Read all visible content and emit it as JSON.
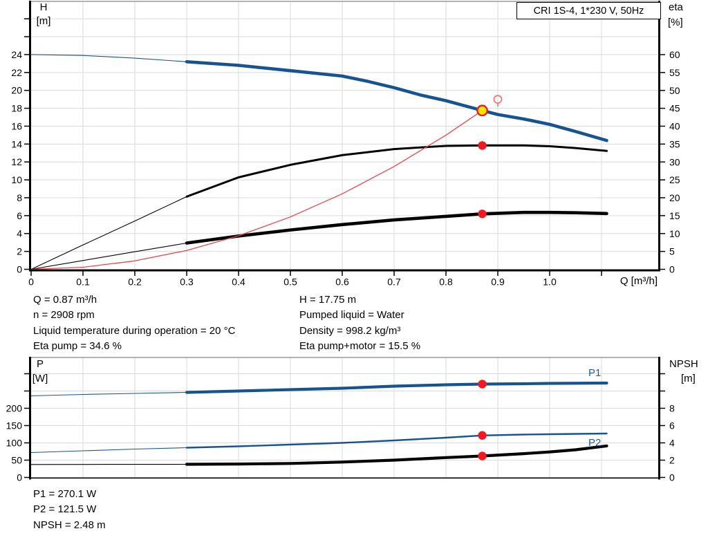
{
  "title_box": {
    "label": "CRI 1S-4, 1*230 V, 50Hz"
  },
  "colors": {
    "curve_blue": "#17548f",
    "label_blue": "#1d5ca3",
    "black": "#000000",
    "red": "#ec1c24",
    "yellow": "#ffe000",
    "light_red": "#f26b6b",
    "system_curve_red": "#ee4444",
    "grid": "#d9d9d9",
    "frame": "#9a9a9a"
  },
  "readout": {
    "left": [
      "Q = 0.87 m³/h",
      "n = 2908 rpm",
      "Liquid temperature during operation = 20 °C",
      "Eta pump = 34.6 %"
    ],
    "right": [
      "H = 17.75 m",
      "Pumped liquid = Water",
      "Density = 998.2 kg/m³",
      "Eta pump+motor = 15.5 %"
    ],
    "bottom": [
      "P1 = 270.1 W",
      "P2 = 121.5 W",
      "NPSH = 2.48 m"
    ]
  },
  "chart_data": [
    {
      "type": "line",
      "name": "head-efficiency-chart",
      "x_axis": {
        "label": "Q [m³/h]",
        "min": 0,
        "max": 1.207,
        "ticks": [
          [
            0,
            "0"
          ],
          [
            0.1,
            "0.1"
          ],
          [
            0.2,
            "0.2"
          ],
          [
            0.3,
            "0.3"
          ],
          [
            0.4,
            "0.4"
          ],
          [
            0.5,
            "0.5"
          ],
          [
            0.6,
            "0.6"
          ],
          [
            0.7,
            "0.7"
          ],
          [
            0.8,
            "0.8"
          ],
          [
            0.9,
            "0.9"
          ],
          [
            1.0,
            "1.0"
          ]
        ],
        "unlabeled": [
          1.1
        ],
        "grid": true
      },
      "y_left": {
        "label": "H",
        "unit": "[m]",
        "min": 0,
        "max": 30,
        "ticks": [
          [
            0,
            "0"
          ],
          [
            2,
            "2"
          ],
          [
            4,
            "4"
          ],
          [
            6,
            "6"
          ],
          [
            8,
            "8"
          ],
          [
            10,
            "10"
          ],
          [
            12,
            "12"
          ],
          [
            14,
            "14"
          ],
          [
            16,
            "16"
          ],
          [
            18,
            "18"
          ],
          [
            20,
            "20"
          ],
          [
            22,
            "22"
          ],
          [
            24,
            "24"
          ]
        ],
        "unlabeled": [
          26,
          28
        ]
      },
      "y_right": {
        "label": "eta",
        "unit": "[%]",
        "min": 0,
        "max": 75,
        "ticks": [
          [
            0,
            "0"
          ],
          [
            5,
            "5"
          ],
          [
            10,
            "10"
          ],
          [
            15,
            "15"
          ],
          [
            20,
            "20"
          ],
          [
            25,
            "25"
          ],
          [
            30,
            "30"
          ],
          [
            35,
            "35"
          ],
          [
            40,
            "40"
          ],
          [
            45,
            "45"
          ],
          [
            50,
            "50"
          ],
          [
            55,
            "55"
          ],
          [
            60,
            "60"
          ]
        ],
        "unlabeled": []
      },
      "series": [
        {
          "name": "H",
          "axis": "left",
          "color": "#17548f",
          "width": 4.6,
          "thin_until": 0.3,
          "points": [
            [
              0,
              24
            ],
            [
              0.1,
              23.9
            ],
            [
              0.2,
              23.6
            ],
            [
              0.3,
              23.2
            ],
            [
              0.4,
              22.8
            ],
            [
              0.5,
              22.2
            ],
            [
              0.6,
              21.6
            ],
            [
              0.65,
              21.0
            ],
            [
              0.7,
              20.3
            ],
            [
              0.75,
              19.5
            ],
            [
              0.8,
              18.85
            ],
            [
              0.87,
              17.75
            ],
            [
              0.9,
              17.3
            ],
            [
              0.95,
              16.8
            ],
            [
              1.0,
              16.2
            ],
            [
              1.05,
              15.4
            ],
            [
              1.11,
              14.4
            ]
          ]
        },
        {
          "name": "eta-pump",
          "axis": "right",
          "color": "#000000",
          "width": 3,
          "thin_until": 0.3,
          "points": [
            [
              0,
              0
            ],
            [
              0.1,
              6.8
            ],
            [
              0.2,
              13.5
            ],
            [
              0.3,
              20.3
            ],
            [
              0.4,
              25.7
            ],
            [
              0.5,
              29.2
            ],
            [
              0.6,
              31.9
            ],
            [
              0.7,
              33.6
            ],
            [
              0.8,
              34.5
            ],
            [
              0.87,
              34.6
            ],
            [
              0.95,
              34.6
            ],
            [
              1.0,
              34.4
            ],
            [
              1.05,
              33.9
            ],
            [
              1.11,
              33.1
            ]
          ]
        },
        {
          "name": "eta-pump-motor",
          "axis": "right",
          "color": "#000000",
          "width": 4.6,
          "thin_until": 0.3,
          "points": [
            [
              0,
              0
            ],
            [
              0.1,
              2.45
            ],
            [
              0.2,
              4.9
            ],
            [
              0.3,
              7.35
            ],
            [
              0.4,
              9.3
            ],
            [
              0.5,
              11.0
            ],
            [
              0.6,
              12.5
            ],
            [
              0.7,
              13.8
            ],
            [
              0.8,
              14.8
            ],
            [
              0.87,
              15.5
            ],
            [
              0.95,
              15.9
            ],
            [
              1.0,
              15.9
            ],
            [
              1.05,
              15.8
            ],
            [
              1.11,
              15.6
            ]
          ]
        },
        {
          "name": "system-curve",
          "axis": "left",
          "color": "#ee4444",
          "width": 1.3,
          "thin_until": null,
          "points": [
            [
              0,
              0
            ],
            [
              0.1,
              0.23
            ],
            [
              0.2,
              0.94
            ],
            [
              0.3,
              2.11
            ],
            [
              0.4,
              3.75
            ],
            [
              0.5,
              5.86
            ],
            [
              0.6,
              8.44
            ],
            [
              0.7,
              11.49
            ],
            [
              0.8,
              15.0
            ],
            [
              0.87,
              17.75
            ]
          ]
        }
      ],
      "markers": [
        {
          "name": "duty-point",
          "axis": "left",
          "q": 0.87,
          "v": 17.75,
          "style": "duty"
        },
        {
          "name": "requested-duty-point",
          "axis": "left",
          "q": 0.9,
          "v": 19.0,
          "style": "open"
        },
        {
          "name": "eta-pump-operating-point",
          "axis": "right",
          "q": 0.87,
          "v": 34.6,
          "style": "dot"
        },
        {
          "name": "eta-pump-motor-operating-point",
          "axis": "right",
          "q": 0.87,
          "v": 15.5,
          "style": "dot"
        }
      ]
    },
    {
      "type": "line",
      "name": "power-npsh-chart",
      "x_axis": {
        "label": "",
        "min": 0,
        "max": 1.207,
        "ticks": [
          [
            0,
            "0"
          ],
          [
            0.1,
            "0.1"
          ],
          [
            0.2,
            "0.2"
          ],
          [
            0.3,
            "0.3"
          ],
          [
            0.4,
            "0.4"
          ],
          [
            0.5,
            "0.5"
          ],
          [
            0.6,
            "0.6"
          ],
          [
            0.7,
            "0.7"
          ],
          [
            0.8,
            "0.8"
          ],
          [
            0.9,
            "0.9"
          ],
          [
            1.0,
            "1.0"
          ]
        ],
        "unlabeled": [
          1.1
        ],
        "grid": true
      },
      "y_left": {
        "label": "P",
        "unit": "[W]",
        "min": 0,
        "max": 347,
        "ticks": [
          [
            0,
            "0"
          ],
          [
            50,
            "50"
          ],
          [
            100,
            "100"
          ],
          [
            150,
            "150"
          ],
          [
            200,
            "200"
          ]
        ],
        "unlabeled": [
          250,
          300
        ]
      },
      "y_right": {
        "label": "NPSH",
        "unit": "[m]",
        "min": 0,
        "max": 13.9,
        "ticks": [
          [
            0,
            "0"
          ],
          [
            2,
            "2"
          ],
          [
            4,
            "4"
          ],
          [
            6,
            "6"
          ],
          [
            8,
            "8"
          ]
        ],
        "unlabeled": [
          10,
          12
        ]
      },
      "series": [
        {
          "name": "P1",
          "axis": "left",
          "color": "#17548f",
          "width": 4.2,
          "thin_until": 0.3,
          "points": [
            [
              0,
              236
            ],
            [
              0.1,
              240
            ],
            [
              0.2,
              243
            ],
            [
              0.3,
              246
            ],
            [
              0.4,
              250
            ],
            [
              0.5,
              254
            ],
            [
              0.6,
              258
            ],
            [
              0.7,
              264
            ],
            [
              0.8,
              268
            ],
            [
              0.87,
              270.1
            ],
            [
              0.95,
              271
            ],
            [
              1.0,
              272
            ],
            [
              1.11,
              273
            ]
          ]
        },
        {
          "name": "P2",
          "axis": "left",
          "color": "#17548f",
          "width": 2.4,
          "thin_until": 0.3,
          "points": [
            [
              0,
              72
            ],
            [
              0.1,
              77
            ],
            [
              0.2,
              82
            ],
            [
              0.3,
              86
            ],
            [
              0.4,
              90
            ],
            [
              0.5,
              95
            ],
            [
              0.6,
              100
            ],
            [
              0.7,
              107
            ],
            [
              0.8,
              115
            ],
            [
              0.87,
              121.5
            ],
            [
              0.95,
              124
            ],
            [
              1.0,
              125
            ],
            [
              1.11,
              127
            ]
          ]
        },
        {
          "name": "NPSH",
          "axis": "right",
          "color": "#000000",
          "width": 4.2,
          "thin_until": 0.3,
          "points": [
            [
              0,
              1.5
            ],
            [
              0.15,
              1.51
            ],
            [
              0.3,
              1.52
            ],
            [
              0.4,
              1.55
            ],
            [
              0.5,
              1.62
            ],
            [
              0.6,
              1.78
            ],
            [
              0.7,
              2.0
            ],
            [
              0.8,
              2.3
            ],
            [
              0.87,
              2.48
            ],
            [
              0.95,
              2.75
            ],
            [
              1.0,
              2.95
            ],
            [
              1.05,
              3.2
            ],
            [
              1.11,
              3.65
            ]
          ]
        }
      ],
      "markers": [
        {
          "name": "p1-operating-point",
          "axis": "left",
          "q": 0.87,
          "v": 270.1,
          "style": "dot"
        },
        {
          "name": "p2-operating-point",
          "axis": "left",
          "q": 0.87,
          "v": 121.5,
          "style": "dot"
        },
        {
          "name": "npsh-operating-point",
          "axis": "right",
          "q": 0.87,
          "v": 2.48,
          "style": "dot"
        }
      ]
    }
  ]
}
